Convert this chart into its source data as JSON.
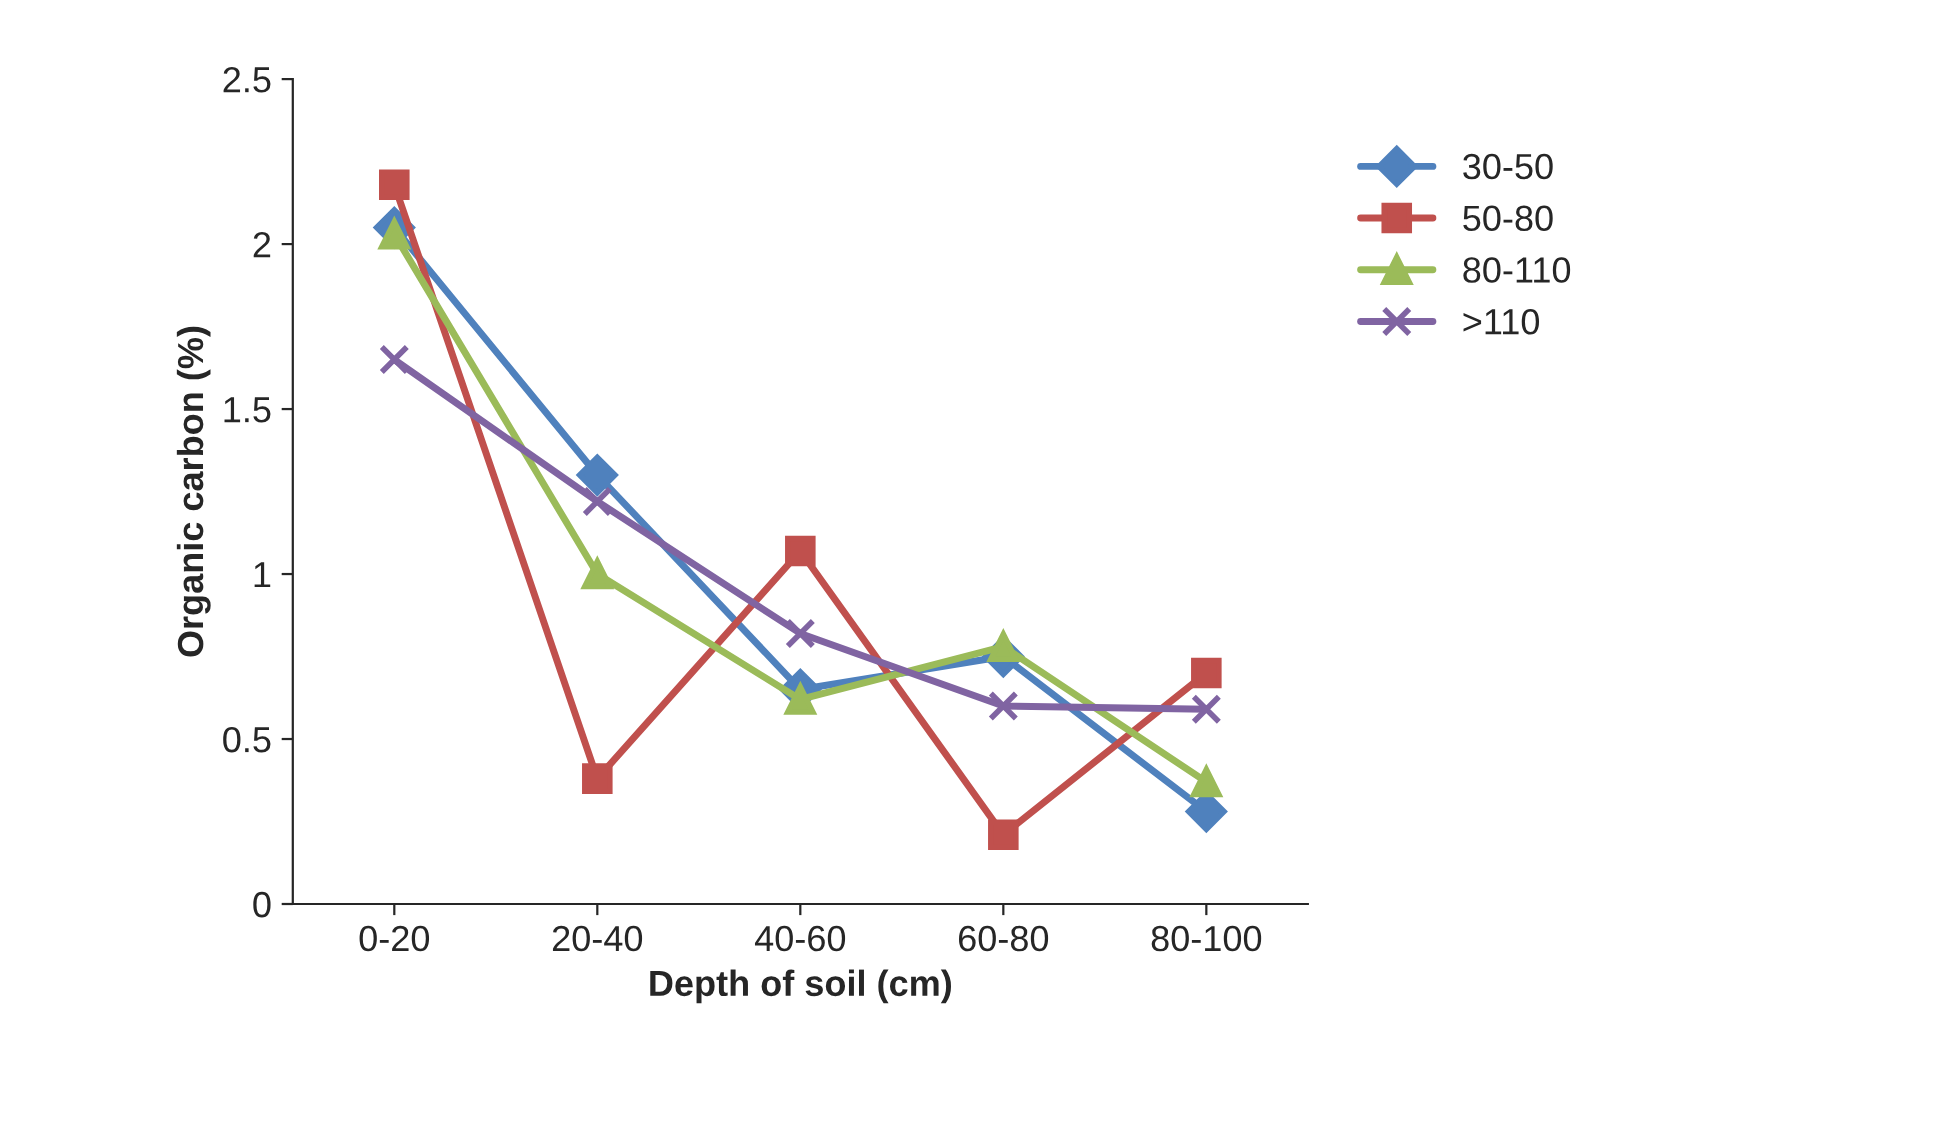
{
  "chart_data": {
    "type": "line",
    "xlabel": "Depth of soil (cm)",
    "ylabel": "Organic carbon (%)",
    "categories": [
      "0-20",
      "20-40",
      "40-60",
      "60-80",
      "80-100"
    ],
    "series": [
      {
        "name": "30-50",
        "color": "#4f81bd",
        "marker": "diamond",
        "values": [
          2.05,
          1.3,
          0.65,
          0.75,
          0.28
        ]
      },
      {
        "name": "50-80",
        "color": "#c0504d",
        "marker": "square",
        "values": [
          2.18,
          0.38,
          1.07,
          0.21,
          0.7
        ]
      },
      {
        "name": "80-110",
        "color": "#9bbb59",
        "marker": "triangle",
        "values": [
          2.03,
          1.0,
          0.62,
          0.78,
          0.37
        ]
      },
      {
        "name": ">110",
        "color": "#8064a2",
        "marker": "cross",
        "values": [
          1.65,
          1.22,
          0.82,
          0.6,
          0.59
        ]
      }
    ],
    "ylim": [
      0,
      2.5
    ],
    "yticks": [
      0,
      0.5,
      1,
      1.5,
      2,
      2.5
    ],
    "grid": false,
    "legend": "top right"
  }
}
